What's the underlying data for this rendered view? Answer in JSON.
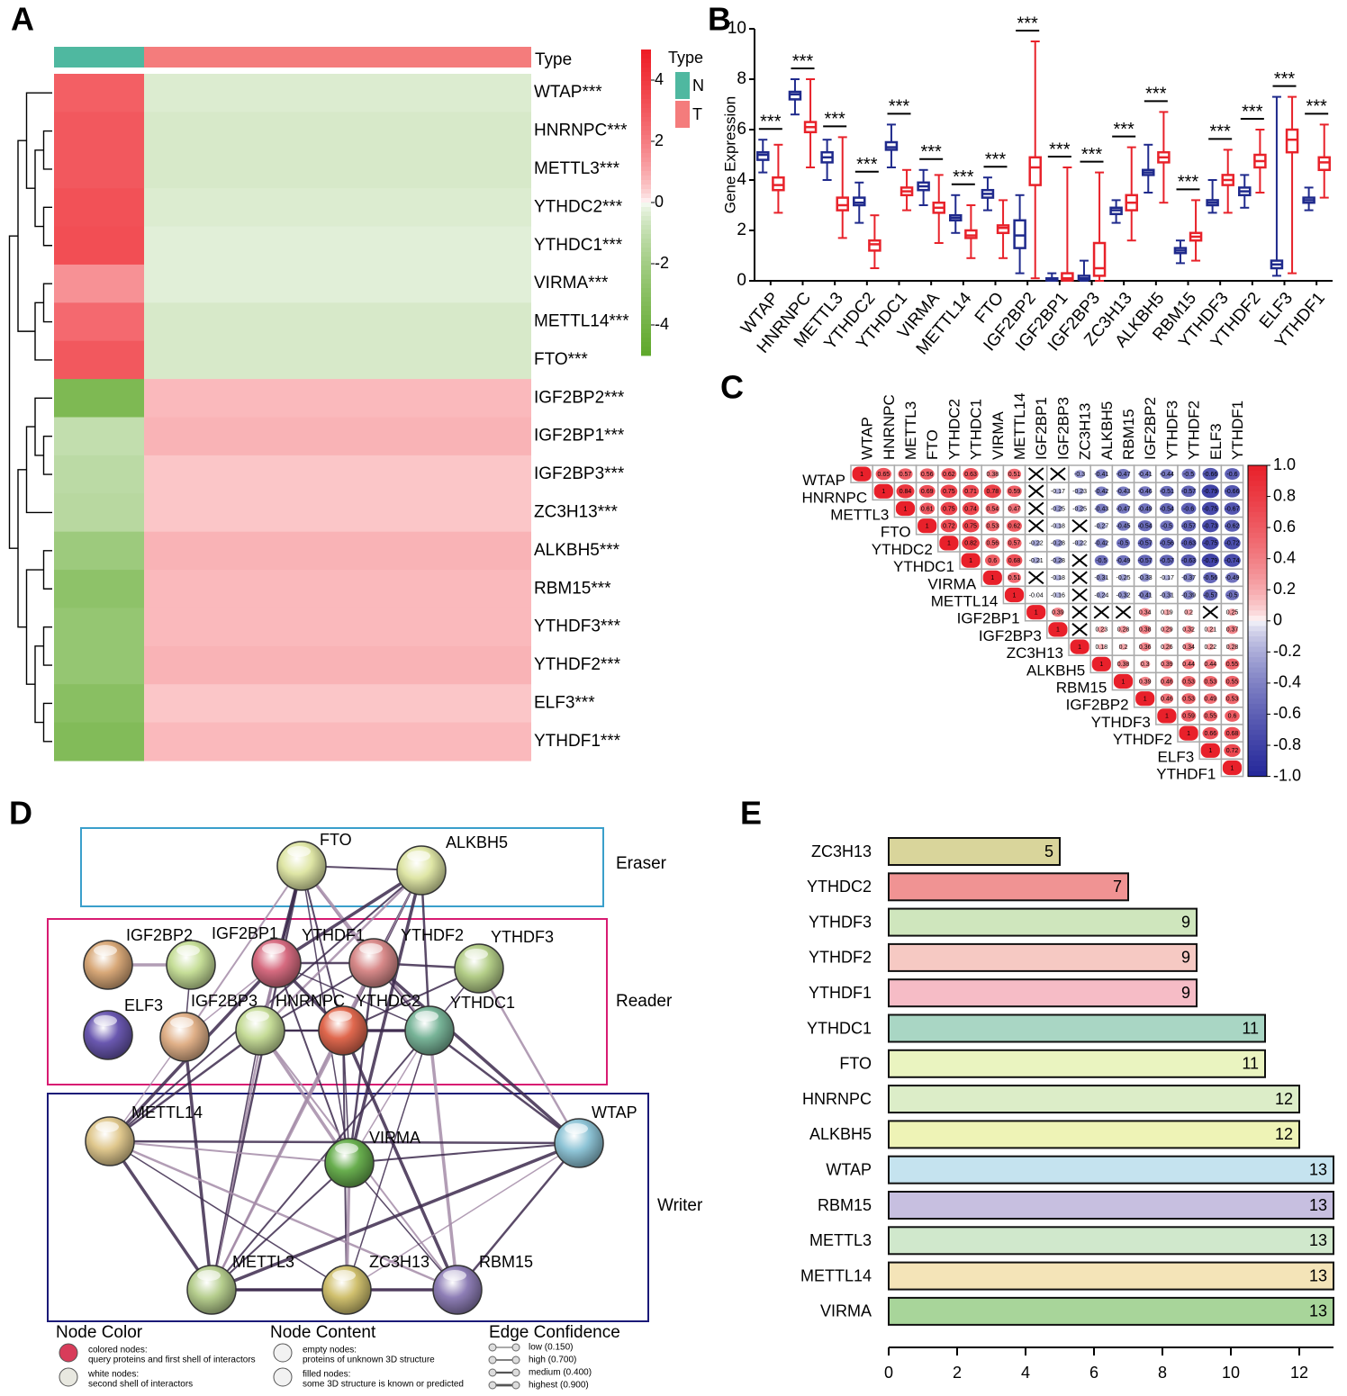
{
  "chart_data": [
    {
      "label": "A",
      "type": "heatmap",
      "annotation_title": "Type",
      "legend_title": "Type",
      "groups": [
        {
          "name": "N",
          "color": "#4fb8a0"
        },
        {
          "name": "T",
          "color": "#f47c7c"
        }
      ],
      "rows": [
        "WTAP***",
        "HNRNPC***",
        "METTL3***",
        "YTHDC2***",
        "YTHDC1***",
        "VIRMA***",
        "METTL14***",
        "FTO***",
        "IGF2BP2***",
        "IGF2BP1***",
        "IGF2BP3***",
        "ZC3H13***",
        "ALKBH5***",
        "RBM15***",
        "YTHDF3***",
        "YTHDF2***",
        "ELF3***",
        "YTHDF1***"
      ],
      "values": [
        [
          2.8,
          -0.4
        ],
        [
          3,
          -0.5
        ],
        [
          3,
          -0.5
        ],
        [
          3.2,
          -0.4
        ],
        [
          3.3,
          -0.3
        ],
        [
          1.5,
          -0.3
        ],
        [
          2.5,
          -0.5
        ],
        [
          3,
          -0.5
        ],
        [
          -3.5,
          0.7
        ],
        [
          -1,
          0.8
        ],
        [
          -1.2,
          0.5
        ],
        [
          -1.3,
          0.5
        ],
        [
          -2.2,
          0.8
        ],
        [
          -2.8,
          0.7
        ],
        [
          -2.5,
          0.7
        ],
        [
          -2.5,
          0.8
        ],
        [
          -3,
          0.5
        ],
        [
          -3.3,
          0.7
        ]
      ],
      "colorbar_lim": [
        -5,
        5
      ],
      "colorbar_ticks": [
        4,
        2,
        0,
        -2,
        -4
      ],
      "colors": {
        "low": "#5fa82a",
        "mid": "#ffffff",
        "high": "#ee1c24"
      }
    },
    {
      "label": "B",
      "type": "box",
      "ylabel": "Gene Expression",
      "ylim": [
        0,
        10
      ],
      "yticks": [
        0,
        2,
        4,
        6,
        8,
        10
      ],
      "categories": [
        "WTAP",
        "HNRNPC",
        "METTL3",
        "YTHDC2",
        "YTHDC1",
        "VIRMA",
        "METTL14",
        "FTO",
        "IGF2BP2",
        "IGF2BP1",
        "IGF2BP3",
        "ZC3H13",
        "ALKBH5",
        "RBM15",
        "YTHDF3",
        "YTHDF2",
        "ELF3",
        "YTHDF1"
      ],
      "annotations": [
        "***",
        "***",
        "***",
        "***",
        "***",
        "***",
        "***",
        "***",
        "***",
        "***",
        "***",
        "***",
        "***",
        "***",
        "***",
        "***",
        "***",
        "***"
      ],
      "series": [
        {
          "color": "#1f2a8c",
          "values": [
            [
              4.3,
              4.8,
              5.0,
              5.1,
              5.6
            ],
            [
              6.6,
              7.2,
              7.4,
              7.5,
              8.0
            ],
            [
              4.0,
              4.7,
              4.9,
              5.1,
              5.6
            ],
            [
              2.3,
              3.0,
              3.1,
              3.3,
              3.9
            ],
            [
              4.5,
              5.2,
              5.3,
              5.5,
              6.2
            ],
            [
              3.0,
              3.6,
              3.75,
              3.9,
              4.4
            ],
            [
              1.9,
              2.4,
              2.5,
              2.6,
              3.4
            ],
            [
              2.8,
              3.3,
              3.45,
              3.6,
              4.1
            ],
            [
              0.3,
              1.3,
              1.8,
              2.4,
              3.4
            ],
            [
              0,
              0.02,
              0.05,
              0.1,
              0.3
            ],
            [
              0,
              0.05,
              0.1,
              0.2,
              0.8
            ],
            [
              2.3,
              2.65,
              2.8,
              2.9,
              3.2
            ],
            [
              3.5,
              4.2,
              4.3,
              4.4,
              5.4
            ],
            [
              0.7,
              1.1,
              1.2,
              1.3,
              1.6
            ],
            [
              2.7,
              3.0,
              3.1,
              3.2,
              4.0
            ],
            [
              2.9,
              3.4,
              3.55,
              3.7,
              4.2
            ],
            [
              0.2,
              0.5,
              0.65,
              0.8,
              7.3
            ],
            [
              2.8,
              3.1,
              3.2,
              3.3,
              3.7
            ]
          ]
        },
        {
          "color": "#e8222a",
          "values": [
            [
              2.7,
              3.6,
              3.8,
              4.1,
              5.4
            ],
            [
              4.5,
              5.9,
              6.1,
              6.3,
              8.0
            ],
            [
              1.7,
              2.8,
              3.0,
              3.3,
              5.7
            ],
            [
              0.5,
              1.2,
              1.45,
              1.6,
              2.6
            ],
            [
              2.8,
              3.4,
              3.55,
              3.7,
              4.4
            ],
            [
              1.5,
              2.7,
              2.9,
              3.1,
              4.2
            ],
            [
              0.9,
              1.7,
              1.8,
              2.0,
              3.0
            ],
            [
              0.9,
              1.9,
              2.1,
              2.2,
              3.2
            ],
            [
              0.1,
              3.8,
              4.5,
              4.9,
              9.5
            ],
            [
              0,
              0.02,
              0.1,
              0.3,
              4.5
            ],
            [
              0,
              0.2,
              0.5,
              1.5,
              4.3
            ],
            [
              1.6,
              2.8,
              3.1,
              3.4,
              5.3
            ],
            [
              3.1,
              4.7,
              4.9,
              5.1,
              6.7
            ],
            [
              0.8,
              1.6,
              1.75,
              1.9,
              3.2
            ],
            [
              2.7,
              3.8,
              4.0,
              4.2,
              5.2
            ],
            [
              3.5,
              4.5,
              4.75,
              5.0,
              6.0
            ],
            [
              0.3,
              5.1,
              5.6,
              6.0,
              7.3
            ],
            [
              3.3,
              4.4,
              4.7,
              4.9,
              6.2
            ]
          ]
        }
      ]
    },
    {
      "label": "C",
      "type": "correlation",
      "variables": [
        "WTAP",
        "HNRNPC",
        "METTL3",
        "FTO",
        "YTHDC2",
        "YTHDC1",
        "VIRMA",
        "METTL14",
        "IGF2BP1",
        "IGF2BP3",
        "ZC3H13",
        "ALKBH5",
        "RBM15",
        "IGF2BP2",
        "YTHDF3",
        "YTHDF2",
        "ELF3",
        "YTHDF1"
      ],
      "values": [
        [
          1,
          0.65,
          0.57,
          0.56,
          0.62,
          0.63,
          0.38,
          0.51,
          null,
          null,
          -0.3,
          -0.41,
          -0.47,
          -0.41,
          -0.44,
          -0.5,
          -0.66,
          -0.6
        ],
        [
          1,
          0.84,
          0.69,
          0.75,
          0.71,
          0.78,
          0.59,
          null,
          -0.17,
          -0.23,
          -0.42,
          -0.43,
          -0.46,
          -0.51,
          -0.57,
          -0.79,
          -0.66
        ],
        [
          1,
          0.61,
          0.75,
          0.74,
          0.54,
          0.47,
          null,
          -0.25,
          -0.25,
          -0.43,
          -0.47,
          -0.49,
          -0.54,
          -0.6,
          -0.75,
          -0.67
        ],
        [
          1,
          0.72,
          0.75,
          0.53,
          0.62,
          null,
          -0.18,
          null,
          -0.27,
          -0.45,
          -0.54,
          -0.5,
          -0.57,
          -0.73,
          -0.62
        ],
        [
          1,
          0.82,
          0.56,
          0.57,
          -0.22,
          -0.28,
          -0.22,
          -0.42,
          -0.5,
          -0.57,
          -0.56,
          -0.63,
          -0.75,
          -0.72
        ],
        [
          1,
          0.6,
          0.68,
          -0.21,
          -0.28,
          null,
          -0.5,
          -0.49,
          -0.57,
          -0.57,
          -0.63,
          -0.79,
          -0.74
        ],
        [
          1,
          0.51,
          null,
          -0.18,
          null,
          -0.31,
          -0.25,
          -0.33,
          -0.17,
          -0.37,
          -0.56,
          -0.49
        ],
        [
          1,
          -0.04,
          -0.16,
          null,
          -0.24,
          -0.32,
          -0.41,
          -0.31,
          -0.39,
          -0.57,
          -0.5
        ],
        [
          1,
          0.39,
          null,
          null,
          null,
          0.34,
          0.19,
          0.2,
          null,
          0.25
        ],
        [
          1,
          null,
          0.23,
          0.28,
          0.38,
          0.29,
          0.32,
          0.21,
          0.37
        ],
        [
          1,
          0.18,
          0.2,
          0.36,
          0.26,
          0.34,
          0.22,
          0.28
        ],
        [
          1,
          0.38,
          0.3,
          0.39,
          0.44,
          0.44,
          0.55
        ],
        [
          1,
          0.39,
          0.46,
          0.53,
          0.53,
          0.55
        ],
        [
          1,
          0.46,
          0.53,
          0.49,
          0.53
        ],
        [
          1,
          0.59,
          0.55,
          0.6
        ],
        [
          1,
          0.66,
          0.68
        ],
        [
          1,
          0.72
        ],
        [
          1
        ]
      ],
      "zlim": [
        -1,
        1
      ],
      "zticks": [
        {
          "value": 1,
          "label": "1.0"
        },
        0.8,
        0.6,
        0.4,
        0.2,
        0,
        -0.2,
        -0.4,
        -0.6,
        -0.8,
        {
          "value": -1,
          "label": "-1.0"
        }
      ],
      "colors": {
        "positive": "#e8202a",
        "negative": "#24279a"
      }
    },
    {
      "label": "E",
      "type": "hbar",
      "categories": [
        "ZC3H13",
        "YTHDC2",
        "YTHDF3",
        "YTHDF2",
        "YTHDF1",
        "YTHDC1",
        "FTO",
        "HNRNPC",
        "ALKBH5",
        "WTAP",
        "RBM15",
        "METTL3",
        "METTL14",
        "VIRMA"
      ],
      "values": [
        5,
        7,
        9,
        9,
        9,
        11,
        11,
        12,
        12,
        13,
        13,
        13,
        13,
        13
      ],
      "colors": [
        "#d9d59b",
        "#f09393",
        "#cfe6bd",
        "#f6c9c3",
        "#f6bcc6",
        "#a9d6c4",
        "#eaf4c0",
        "#dcedc8",
        "#eef3b6",
        "#c5e3ef",
        "#c7bfe0",
        "#d0e8cc",
        "#f4e4b8",
        "#a8d59a"
      ],
      "xlim": [
        0,
        13
      ],
      "xticks": [
        0,
        2,
        4,
        6,
        8,
        10,
        12
      ]
    }
  ],
  "network": {
    "label": "D",
    "groups": [
      {
        "name": "Eraser",
        "color": "#3a9fcb"
      },
      {
        "name": "Reader",
        "color": "#d81b72"
      },
      {
        "name": "Writer",
        "color": "#1b1a78"
      }
    ],
    "nodes": [
      {
        "label": "FTO",
        "color": "#dfe6a6"
      },
      {
        "label": "ALKBH5",
        "color": "#dfe6a6"
      },
      {
        "label": "IGF2BP2",
        "color": "#d8a878"
      },
      {
        "label": "IGF2BP1",
        "color": "#c6de98"
      },
      {
        "label": "YTHDF1",
        "color": "#d66b80"
      },
      {
        "label": "YTHDF2",
        "color": "#d88a8a"
      },
      {
        "label": "YTHDF3",
        "color": "#b4ce88"
      },
      {
        "label": "ELF3",
        "color": "#6a58b0"
      },
      {
        "label": "IGF2BP3",
        "color": "#e0b088"
      },
      {
        "label": "HNRNPC",
        "color": "#c6dc98"
      },
      {
        "label": "YTHDC2",
        "color": "#e0684e"
      },
      {
        "label": "YTHDC1",
        "color": "#78b498"
      },
      {
        "label": "METTL14",
        "color": "#e0c88e"
      },
      {
        "label": "WTAP",
        "color": "#8ec4d6"
      },
      {
        "label": "VIRMA",
        "color": "#68ae4e"
      },
      {
        "label": "METTL3",
        "color": "#b6ce8e"
      },
      {
        "label": "ZC3H13",
        "color": "#d0c06e"
      },
      {
        "label": "RBM15",
        "color": "#8e7eb6"
      }
    ],
    "legend": [
      {
        "title": "Node Color",
        "items": [
          {
            "term": "colored nodes:",
            "text": "query proteins and first shell of interactors"
          },
          {
            "term": "white nodes:",
            "text": "second shell of interactors"
          }
        ]
      },
      {
        "title": "Node Content",
        "items": [
          {
            "term": "empty nodes:",
            "text": "proteins of unknown 3D structure"
          },
          {
            "term": "filled nodes:",
            "text": "some 3D structure is known or predicted"
          }
        ]
      },
      {
        "title": "Edge Confidence",
        "items": [
          {
            "text": "low (0.150)"
          },
          {
            "text": "high (0.700)"
          },
          {
            "text": "medium (0.400)"
          },
          {
            "text": "highest (0.900)"
          }
        ]
      }
    ]
  }
}
